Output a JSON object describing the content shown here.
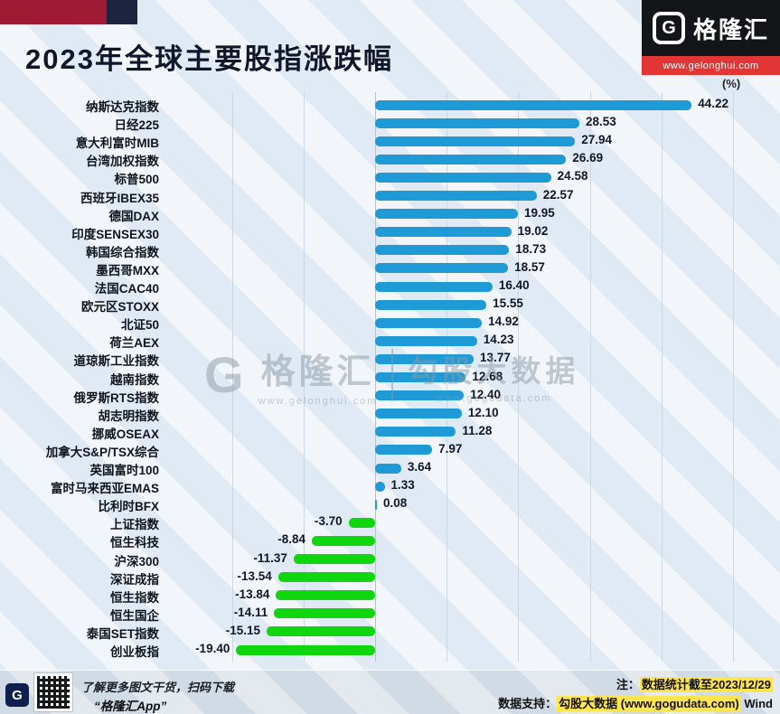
{
  "header": {
    "title": "2023年全球主要股指涨跌幅",
    "brand": {
      "logo_letter": "G",
      "logo_name": "格隆汇",
      "logo_url": "www.gelonghui.com"
    }
  },
  "chart_data": {
    "type": "bar",
    "orientation": "horizontal",
    "title": "2023年全球主要股指涨跌幅",
    "unit_label": "(%)",
    "categories": [
      "纳斯达克指数",
      "日经225",
      "意大利富时MIB",
      "台湾加权指数",
      "标普500",
      "西班牙IBEX35",
      "德国DAX",
      "印度SENSEX30",
      "韩国综合指数",
      "墨西哥MXX",
      "法国CAC40",
      "欧元区STOXX",
      "北证50",
      "荷兰AEX",
      "道琼斯工业指数",
      "越南指数",
      "俄罗斯RTS指数",
      "胡志明指数",
      "挪威OSEAX",
      "加拿大S&P/TSX综合",
      "英国富时100",
      "富时马来西亚EMAS",
      "比利时BFX",
      "上证指数",
      "恒生科技",
      "沪深300",
      "深证成指",
      "恒生指数",
      "恒生国企",
      "泰国SET指数",
      "创业板指"
    ],
    "values": [
      44.22,
      28.53,
      27.94,
      26.69,
      24.58,
      22.57,
      19.95,
      19.02,
      18.73,
      18.57,
      16.4,
      15.55,
      14.92,
      14.23,
      13.77,
      12.68,
      12.4,
      12.1,
      11.28,
      7.97,
      3.64,
      1.33,
      0.08,
      -3.7,
      -8.84,
      -11.37,
      -13.54,
      -13.84,
      -14.11,
      -15.15,
      -19.4
    ],
    "positive_color": "#1e9ad6",
    "negative_color": "#0fd60f",
    "xlim": [
      -25,
      50
    ],
    "gridline_step": 10,
    "grid": true,
    "value_labels": "end",
    "legend": "none"
  },
  "watermark": {
    "logo_letter": "G",
    "left_name": "格隆汇",
    "left_url": "www.gelonghui.com",
    "right_name": "勾股大数据",
    "right_url": "www.gogudata.com"
  },
  "footer": {
    "qr_caption_line1": "了解更多图文干货，扫码下载",
    "qr_caption_line2": "“格隆汇App”",
    "note_prefix": "注：",
    "note_highlight": "数据统计截至2023/12/29",
    "support_prefix": "数据支持：",
    "support_highlight": "勾股大数据 (www.gogudata.com)",
    "support_suffix": " Wind",
    "highlight_color": "#ffe54f"
  }
}
